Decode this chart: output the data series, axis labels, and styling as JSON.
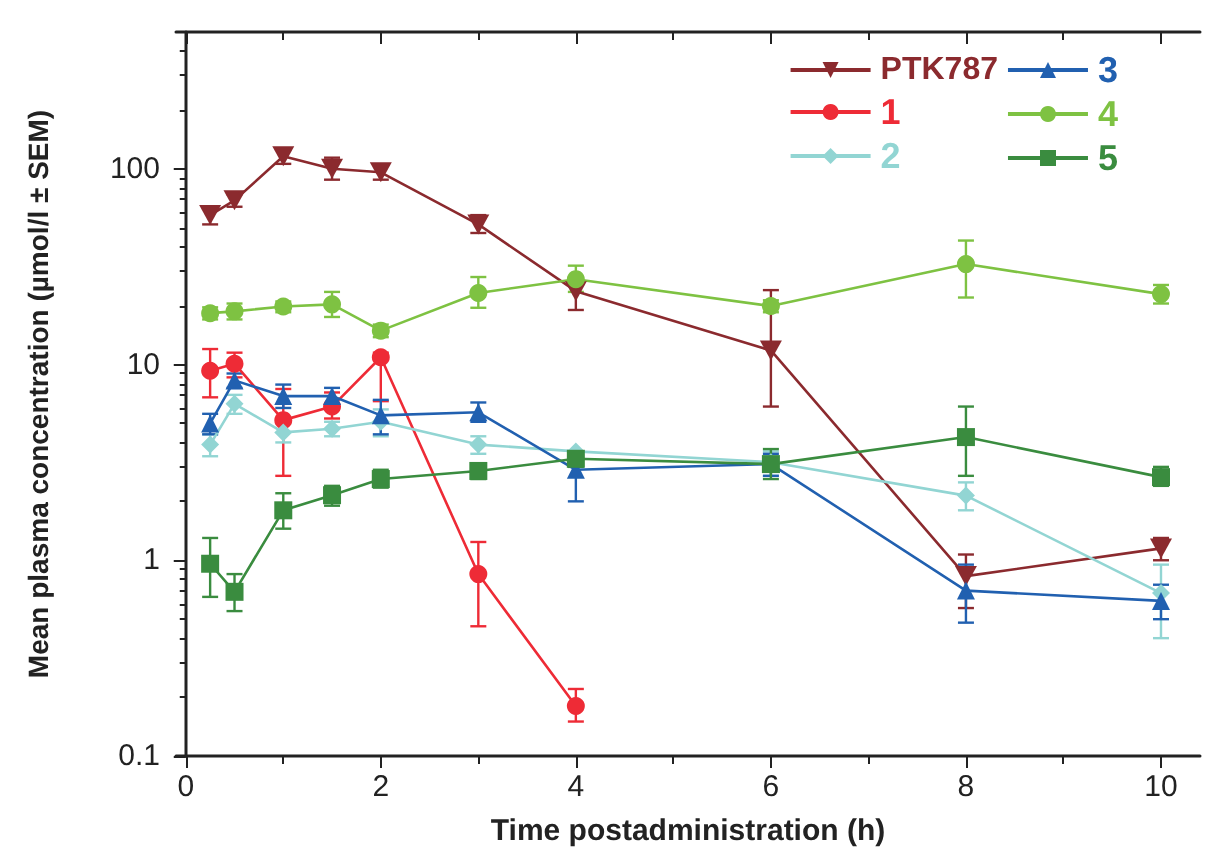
{
  "chart_data": {
    "type": "line",
    "xlabel": "Time postadministration (h)",
    "ylabel": "Mean plasma concentration (µmol/l ± SEM)",
    "log": "y",
    "xlim": [
      -0.1,
      10.4
    ],
    "ylim": [
      0.1,
      500
    ],
    "xticks": [
      0,
      2,
      4,
      6,
      8,
      10
    ],
    "yticks": [
      0.1,
      1,
      10,
      100
    ],
    "grid": false,
    "legend": "top right",
    "line_style": "solid",
    "series": [
      {
        "name": "PTK787",
        "color": "#8b2a2e",
        "marker": "triangle-down",
        "x": [
          0.25,
          0.5,
          1,
          1.5,
          2,
          3,
          4,
          6,
          8,
          10
        ],
        "values": [
          58,
          69,
          116,
          100,
          96,
          52,
          23.7,
          11.8,
          0.83,
          1.15
        ],
        "errors": [
          [
            52,
            64
          ],
          [
            64,
            74
          ],
          [
            106,
            126
          ],
          [
            88,
            114
          ],
          [
            88,
            104
          ],
          [
            47,
            58
          ],
          [
            19,
            28
          ],
          [
            6.1,
            24
          ],
          [
            0.57,
            1.07
          ],
          [
            1.0,
            1.3
          ]
        ]
      },
      {
        "name": "1",
        "color": "#ee2b36",
        "marker": "circle",
        "x": [
          0.25,
          0.5,
          1,
          1.5,
          2,
          3,
          4
        ],
        "values": [
          9.3,
          10.1,
          5.2,
          6.1,
          10.9,
          0.85,
          0.18
        ],
        "errors": [
          [
            6.8,
            12
          ],
          [
            8.6,
            11.5
          ],
          [
            2.7,
            7.5
          ],
          [
            5.3,
            7.2
          ],
          [
            6.5,
            11.5
          ],
          [
            0.46,
            1.24
          ],
          [
            0.15,
            0.22
          ]
        ]
      },
      {
        "name": "2",
        "color": "#92d5d3",
        "marker": "diamond",
        "x": [
          0.25,
          0.5,
          1,
          1.5,
          2,
          3,
          4,
          6,
          8,
          10
        ],
        "values": [
          3.9,
          6.3,
          4.5,
          4.7,
          5.1,
          3.9,
          3.6,
          3.17,
          2.14,
          0.68
        ],
        "errors": [
          [
            3.4,
            4.4
          ],
          [
            5.6,
            7.0
          ],
          [
            4.0,
            5.0
          ],
          [
            4.3,
            5.1
          ],
          [
            4.3,
            5.9
          ],
          [
            3.5,
            4.3
          ],
          null,
          [
            2.7,
            3.6
          ],
          [
            1.8,
            2.5
          ],
          [
            0.4,
            0.95
          ]
        ]
      },
      {
        "name": "3",
        "color": "#2160b0",
        "marker": "triangle",
        "x": [
          0.25,
          0.5,
          1,
          1.5,
          2,
          3,
          4,
          6,
          8,
          10
        ],
        "values": [
          5.0,
          8.3,
          6.9,
          6.9,
          5.5,
          5.7,
          2.9,
          3.1,
          0.7,
          0.62
        ],
        "errors": [
          [
            4.4,
            5.6
          ],
          [
            7.6,
            9.0
          ],
          [
            6.0,
            7.9
          ],
          [
            6.3,
            7.6
          ],
          [
            4.4,
            6.6
          ],
          [
            5.1,
            6.4
          ],
          [
            2.0,
            3.6
          ],
          [
            2.7,
            3.5
          ],
          [
            0.48,
            0.95
          ],
          [
            0.5,
            0.75
          ]
        ]
      },
      {
        "name": "4",
        "color": "#7ec242",
        "marker": "circle",
        "x": [
          0.25,
          0.5,
          1,
          1.5,
          2,
          3,
          4,
          6,
          8,
          10
        ],
        "values": [
          18.3,
          18.7,
          19.8,
          20.3,
          14.9,
          23.2,
          27.3,
          19.9,
          32.6,
          22.9
        ],
        "errors": [
          [
            17,
            19.6
          ],
          [
            17,
            20.5
          ],
          [
            18.5,
            21
          ],
          [
            17.5,
            23.5
          ],
          [
            13.8,
            16
          ],
          [
            19.5,
            28
          ],
          [
            23.5,
            32
          ],
          [
            18.5,
            21.3
          ],
          [
            22,
            43
          ],
          [
            20.5,
            25.5
          ]
        ]
      },
      {
        "name": "5",
        "color": "#3a8c3f",
        "marker": "square",
        "x": [
          0.25,
          0.5,
          1,
          1.5,
          2,
          3,
          4,
          6,
          8,
          10
        ],
        "values": [
          0.96,
          0.69,
          1.8,
          2.15,
          2.6,
          2.86,
          3.3,
          3.1,
          4.26,
          2.66
        ],
        "errors": [
          [
            0.65,
            1.3
          ],
          [
            0.55,
            0.85
          ],
          [
            1.45,
            2.2
          ],
          [
            1.9,
            2.4
          ],
          [
            2.35,
            2.9
          ],
          [
            2.6,
            3.1
          ],
          [
            3.0,
            3.6
          ],
          [
            2.6,
            3.7
          ],
          [
            2.7,
            6.1
          ],
          [
            2.4,
            3.0
          ]
        ]
      }
    ]
  }
}
